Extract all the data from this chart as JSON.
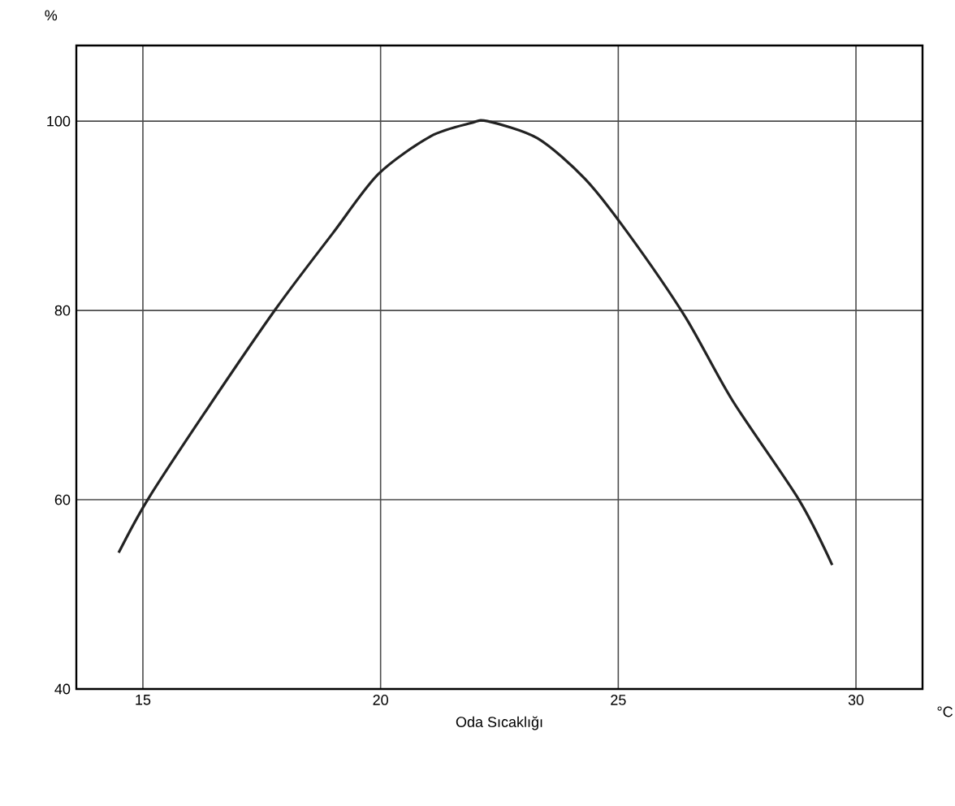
{
  "chart_data": {
    "type": "line",
    "ylabel": "%",
    "xlabel": "Oda Sıcaklığı",
    "annotations": [
      "°C"
    ],
    "xlim": [
      13.6,
      31.4
    ],
    "ylim": [
      40,
      108
    ],
    "xticks": [
      15,
      20,
      25,
      30
    ],
    "yticks": [
      40,
      60,
      80,
      100
    ],
    "grid": true,
    "marker": "none",
    "line_style": "solid",
    "series": [
      {
        "color": "#222222",
        "x": [
          14.49,
          15.1,
          16.3,
          17.8,
          19.0,
          19.95,
          21.05,
          21.9,
          22.25,
          23.3,
          24.3,
          25.2,
          26.4,
          27.4,
          28.8,
          29.5
        ],
        "values": [
          54.4,
          60,
          69.2,
          80.2,
          88.2,
          94.4,
          98.4,
          99.8,
          100,
          98.2,
          93.9,
          88.2,
          79.4,
          70.5,
          60,
          53.1
        ]
      }
    ]
  }
}
